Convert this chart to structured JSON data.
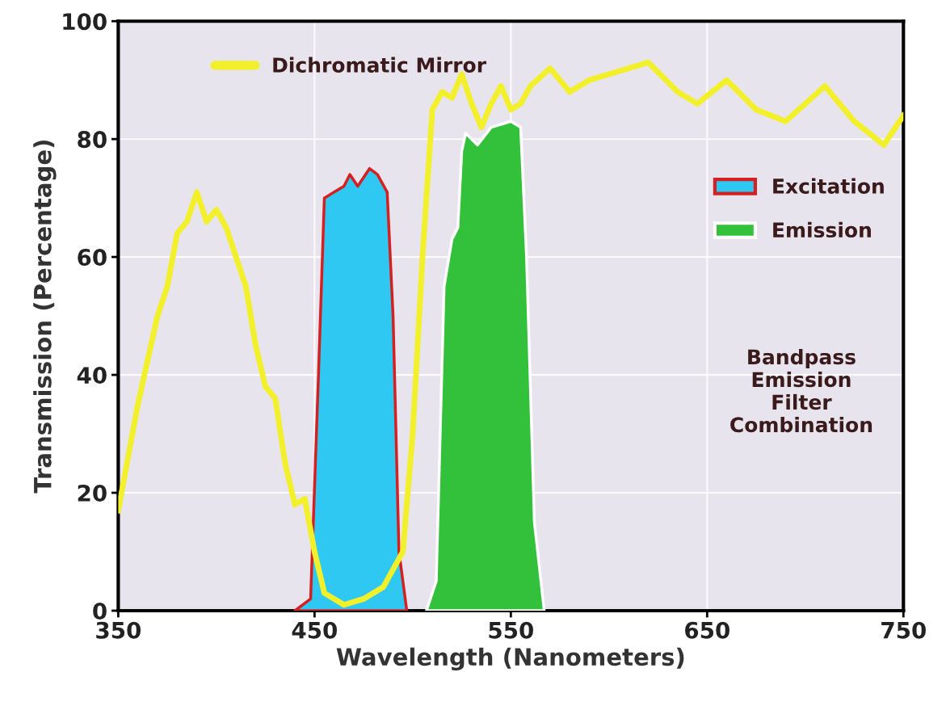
{
  "chart_data": {
    "type": "line",
    "xlabel": "Wavelength (Nanometers)",
    "ylabel": "Transmission (Percentage)",
    "xlim": [
      350,
      750
    ],
    "xticks": [
      350,
      450,
      550,
      650,
      750
    ],
    "ylim": [
      0,
      100
    ],
    "yticks": [
      0,
      20,
      40,
      60,
      80,
      100
    ],
    "grid": true,
    "legend": "right",
    "annotations": [
      "Bandpass Emission Filter Combination"
    ],
    "series": [
      {
        "name": "Dichromatic Mirror",
        "color": "#f2f02a",
        "x": [
          350,
          360,
          370,
          375,
          380,
          385,
          390,
          395,
          400,
          405,
          410,
          415,
          420,
          425,
          430,
          435,
          440,
          445,
          450,
          455,
          465,
          475,
          485,
          495,
          500,
          505,
          510,
          515,
          520,
          525,
          530,
          535,
          540,
          545,
          550,
          555,
          560,
          570,
          580,
          590,
          600,
          620,
          635,
          645,
          660,
          675,
          690,
          710,
          725,
          740,
          750
        ],
        "values": [
          17,
          35,
          50,
          55,
          64,
          66,
          71,
          66,
          68,
          65,
          60,
          55,
          45,
          38,
          36,
          25,
          18,
          19,
          10,
          3,
          1,
          2,
          4,
          10,
          30,
          60,
          85,
          88,
          87,
          91,
          86,
          82,
          86,
          89,
          85,
          86,
          89,
          92,
          88,
          90,
          91,
          93,
          88,
          86,
          90,
          85,
          83,
          89,
          83,
          79,
          84
        ]
      },
      {
        "name": "Excitation",
        "color": "#2ec8f2",
        "type": "area",
        "x": [
          440,
          448,
          452,
          455,
          460,
          465,
          468,
          472,
          478,
          482,
          487,
          490,
          493,
          497
        ],
        "values": [
          0,
          2,
          40,
          70,
          71,
          72,
          74,
          72,
          75,
          74,
          71,
          50,
          10,
          0
        ]
      },
      {
        "name": "Emission",
        "color": "#33c03a",
        "type": "area",
        "x": [
          507,
          512,
          516,
          520,
          523,
          525,
          527,
          530,
          533,
          540,
          550,
          555,
          558,
          562,
          567
        ],
        "values": [
          0,
          5,
          55,
          63,
          65,
          78,
          81,
          80,
          79,
          82,
          83,
          82,
          60,
          15,
          0
        ]
      }
    ]
  }
}
